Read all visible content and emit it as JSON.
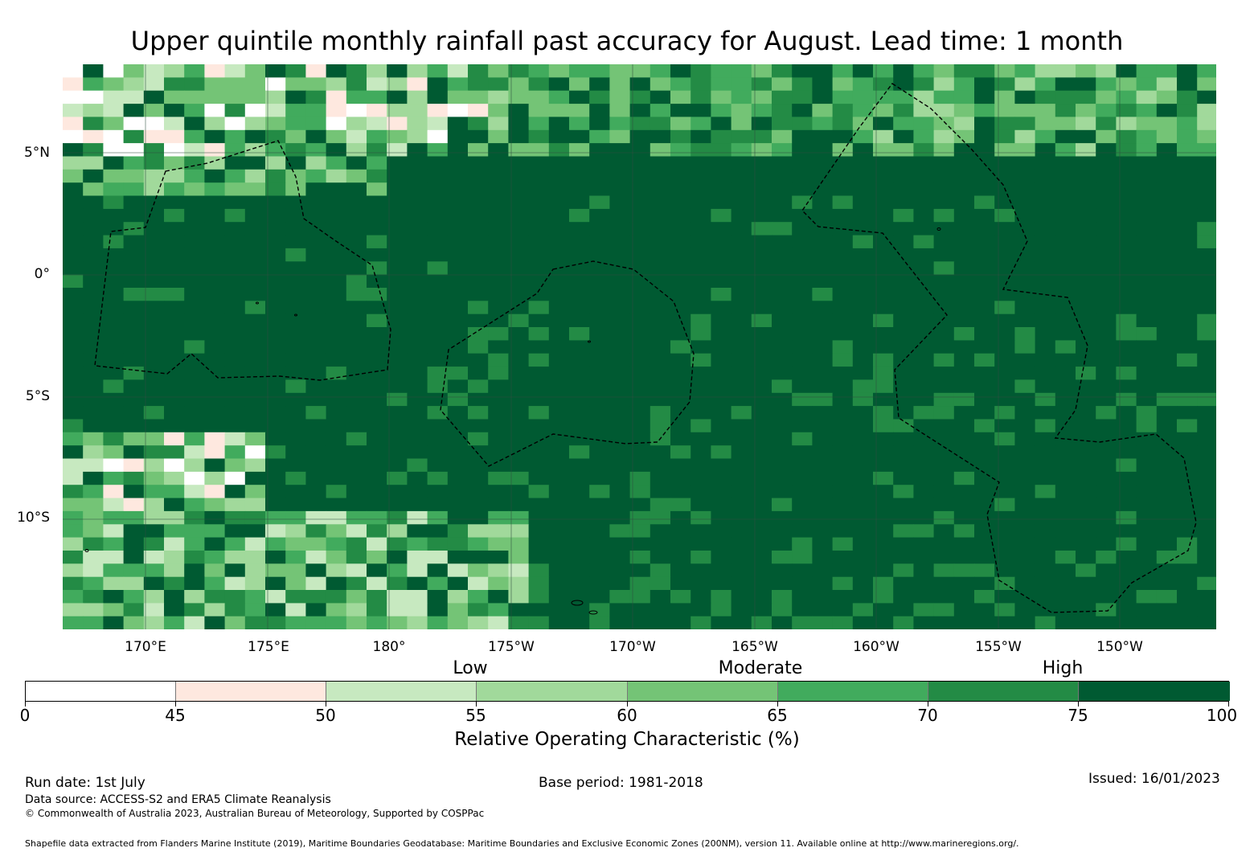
{
  "title": "Upper quintile monthly rainfall past accuracy for August. Lead time: 1 month",
  "map": {
    "lat_labels": [
      "5°N",
      "0°",
      "5°S",
      "10°S"
    ],
    "lon_labels": [
      "170°E",
      "175°E",
      "180°",
      "175°W",
      "170°W",
      "165°W",
      "160°W",
      "155°W",
      "150°W"
    ],
    "gridline_color": "#2f4f3f",
    "eez_line_style": "dashed"
  },
  "legend": {
    "categories": [
      "Low",
      "Moderate",
      "High"
    ],
    "bins": [
      {
        "from": 0,
        "to": 45,
        "color": "#ffffff"
      },
      {
        "from": 45,
        "to": 50,
        "color": "#fee8df"
      },
      {
        "from": 50,
        "to": 55,
        "color": "#c7e9c0"
      },
      {
        "from": 55,
        "to": 60,
        "color": "#a1d99b"
      },
      {
        "from": 60,
        "to": 65,
        "color": "#74c476"
      },
      {
        "from": 65,
        "to": 70,
        "color": "#41ab5d"
      },
      {
        "from": 70,
        "to": 75,
        "color": "#238b45"
      },
      {
        "from": 75,
        "to": 100,
        "color": "#005a32"
      }
    ],
    "tick_labels": [
      "0",
      "45",
      "50",
      "55",
      "60",
      "65",
      "70",
      "75",
      "100"
    ],
    "title": "Relative Operating Characteristic (%)"
  },
  "footer": {
    "run_date": "Run date: 1st July",
    "base_period": "Base period: 1981-2018",
    "issued": "Issued: 16/01/2023",
    "data_source": "Data source: ACCESS-S2 and ERA5 Climate Reanalysis",
    "copyright": "© Commonwealth of Australia 2023, Australian Bureau of Meteorology, Supported by COSPPac",
    "shapefile": "Shapefile data extracted from Flanders Marine Institute (2019), Maritime Boundaries Geodatabase: Maritime Boundaries and Exclusive Economic Zones (200NM), version 11. Available online at http://www.marineregions.org/."
  }
}
